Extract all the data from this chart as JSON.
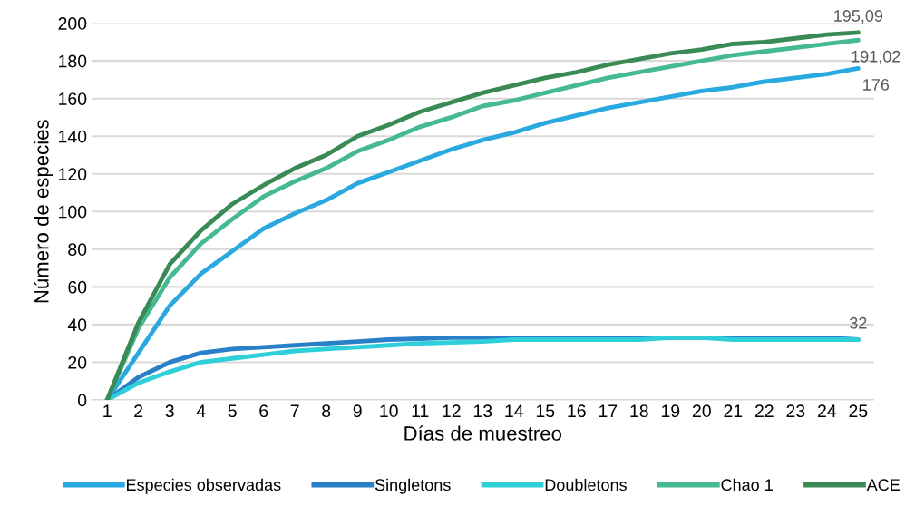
{
  "chart_data": {
    "type": "line",
    "xlabel": "Días de muestreo",
    "ylabel": "Número de especies",
    "categories": [
      "1",
      "2",
      "3",
      "4",
      "5",
      "6",
      "7",
      "8",
      "9",
      "10",
      "11",
      "12",
      "13",
      "14",
      "15",
      "16",
      "17",
      "18",
      "19",
      "20",
      "21",
      "22",
      "23",
      "24",
      "25"
    ],
    "series": [
      {
        "name": "Especies observadas",
        "color": "#2aa8e0",
        "values": [
          0,
          25,
          50,
          67,
          79,
          91,
          99,
          106,
          115,
          121,
          127,
          133,
          138,
          142,
          147,
          151,
          155,
          158,
          161,
          164,
          166,
          169,
          171,
          173,
          176
        ],
        "value_labels": [
          null,
          null,
          null,
          null,
          null,
          null,
          null,
          null,
          null,
          null,
          null,
          null,
          null,
          null,
          null,
          null,
          null,
          null,
          null,
          null,
          null,
          null,
          null,
          null,
          "176"
        ]
      },
      {
        "name": "Singletons",
        "color": "#2a80c8",
        "values": [
          0,
          12,
          20,
          25,
          27,
          28,
          29,
          30,
          31,
          32,
          32.5,
          33,
          33,
          33,
          33,
          33,
          33,
          33,
          33,
          33,
          33,
          33,
          33,
          33,
          32
        ]
      },
      {
        "name": "Doubletons",
        "color": "#2ecfd8",
        "values": [
          0,
          9,
          15,
          20,
          22,
          24,
          26,
          27,
          28,
          29,
          30,
          30.5,
          31,
          32,
          32,
          32,
          32,
          32,
          33,
          33,
          32,
          32,
          32,
          32,
          32
        ],
        "value_labels": [
          null,
          null,
          null,
          null,
          null,
          null,
          null,
          null,
          null,
          null,
          null,
          null,
          null,
          null,
          null,
          null,
          null,
          null,
          null,
          null,
          null,
          null,
          null,
          null,
          "32"
        ]
      },
      {
        "name": "Chao 1",
        "color": "#45b894",
        "values": [
          0,
          38,
          65,
          83,
          96,
          108,
          116,
          123,
          132,
          138,
          145,
          150,
          156,
          159,
          163,
          167,
          171,
          174,
          177,
          180,
          183,
          185,
          187,
          189,
          191.02
        ],
        "value_labels": [
          null,
          null,
          null,
          null,
          null,
          null,
          null,
          null,
          null,
          null,
          null,
          null,
          null,
          null,
          null,
          null,
          null,
          null,
          null,
          null,
          null,
          null,
          null,
          null,
          "191,02"
        ]
      },
      {
        "name": "ACE",
        "color": "#3a8a55",
        "values": [
          0,
          41,
          72,
          90,
          104,
          114,
          123,
          130,
          140,
          146,
          153,
          158,
          163,
          167,
          171,
          174,
          178,
          181,
          184,
          186,
          189,
          190,
          192,
          194,
          195.09
        ],
        "value_labels": [
          null,
          null,
          null,
          null,
          null,
          null,
          null,
          null,
          null,
          null,
          null,
          null,
          null,
          null,
          null,
          null,
          null,
          null,
          null,
          null,
          null,
          null,
          null,
          null,
          "195,09"
        ]
      }
    ],
    "ylim": [
      0,
      200
    ],
    "yticks": [
      0,
      20,
      40,
      60,
      80,
      100,
      120,
      140,
      160,
      180,
      200
    ],
    "grid": "y",
    "legend": "bottom",
    "marker": "none",
    "line_style": "solid"
  }
}
